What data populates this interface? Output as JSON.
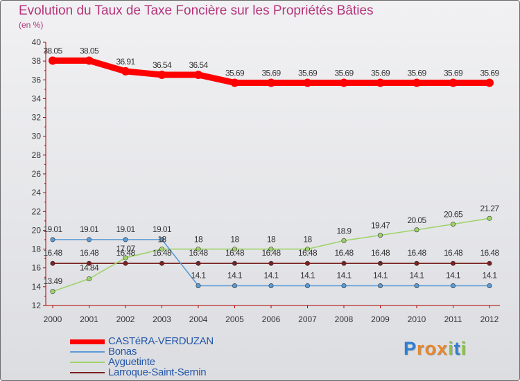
{
  "title": "Evolution du Taux de Taxe Foncière sur les Propriétés Bâties",
  "subtitle": "(en %)",
  "logo": {
    "letters": [
      "P",
      "r",
      "o",
      "x",
      "i",
      "t",
      "i"
    ],
    "colors": [
      "#2e7fd0",
      "#e8872a",
      "#e8872a",
      "#e8872a",
      "#8bc43f",
      "#2e7fd0",
      "#8bc43f"
    ]
  },
  "chart_data": {
    "type": "line",
    "title": "Evolution du Taux de Taxe Foncière sur les Propriétés Bâties",
    "ylabel": "(en %)",
    "x": [
      "2000",
      "2001",
      "2002",
      "2003",
      "2004",
      "2005",
      "2006",
      "2007",
      "2008",
      "2009",
      "2010",
      "2011",
      "2012"
    ],
    "ylim": [
      12,
      40
    ],
    "yticks": [
      12,
      14,
      16,
      18,
      20,
      22,
      24,
      26,
      28,
      30,
      32,
      34,
      36,
      38,
      40
    ],
    "grid": false,
    "legend": "bottom-left",
    "series": [
      {
        "name": "CASTéRA-VERDUZAN",
        "color": "#ff0000",
        "values": [
          38.05,
          38.05,
          36.91,
          36.54,
          36.54,
          35.69,
          35.69,
          35.69,
          35.69,
          35.69,
          35.69,
          35.69,
          35.69
        ],
        "labels": [
          "38.05",
          "38.05",
          "36.91",
          "36.54",
          "36.54",
          "35.69",
          "35.69",
          "35.69",
          "35.69",
          "35.69",
          "35.69",
          "35.69",
          "35.69"
        ]
      },
      {
        "name": "Bonas",
        "color": "#5b9bd5",
        "values": [
          19.01,
          19.01,
          19.01,
          19.01,
          14.1,
          14.1,
          14.1,
          14.1,
          14.1,
          14.1,
          14.1,
          14.1,
          14.1
        ],
        "labels": [
          "19.01",
          "19.01",
          "19.01",
          "19.01",
          "14.1",
          "14.1",
          "14.1",
          "14.1",
          "14.1",
          "14.1",
          "14.1",
          "14.1",
          "14.1"
        ]
      },
      {
        "name": "Ayguetinte",
        "color": "#9ed36a",
        "values": [
          13.49,
          14.84,
          17.07,
          18,
          18,
          18,
          18,
          18,
          18.9,
          19.47,
          20.05,
          20.65,
          21.27
        ],
        "labels": [
          "13.49",
          "14.84",
          "17.07",
          "18",
          "18",
          "18",
          "18",
          "18",
          "18.9",
          "19.47",
          "20.05",
          "20.65",
          "21.27"
        ]
      },
      {
        "name": "Larroque-Saint-Sernin",
        "color": "#7a2222",
        "values": [
          16.48,
          16.48,
          16.48,
          16.48,
          16.48,
          16.48,
          16.48,
          16.48,
          16.48,
          16.48,
          16.48,
          16.48,
          16.48
        ],
        "labels": [
          "16.48",
          "16.48",
          "16.48",
          "16.48",
          "16.48",
          "16.48",
          "16.48",
          "16.48",
          "16.48",
          "16.48",
          "16.48",
          "16.48",
          "16.48"
        ]
      }
    ]
  }
}
